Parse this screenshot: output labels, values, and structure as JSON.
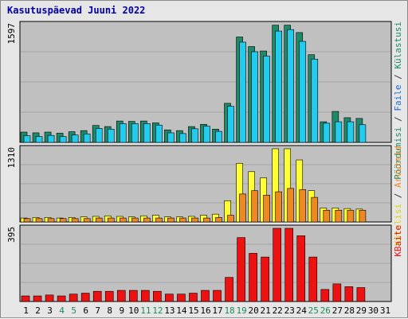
{
  "title": "Kasutuspäevad Juuni 2022",
  "colors": {
    "panel_bg": "#c0c0c0",
    "gridline": "#a6a6a6",
    "weekday_label": "#000000",
    "weekend_label": "#1f8a5a",
    "visits": "#1f8a6a",
    "pages_hits": "#ffff33",
    "files": "#22ccee",
    "bytes": "#ee1111",
    "requests": "#ee8822"
  },
  "legend": {
    "top": [
      {
        "text": "Pöördumisi",
        "color": "#1f8a6a"
      },
      {
        "text": " / ",
        "color": "#333333"
      },
      {
        "text": "Faile",
        "color": "#1a6bd8"
      },
      {
        "text": " / ",
        "color": "#333333"
      },
      {
        "text": "Külastusi",
        "color": "#1f8a6a"
      }
    ],
    "middle": [
      {
        "text": "Külalisi",
        "color": "#e0d000"
      },
      {
        "text": " / ",
        "color": "#333333"
      },
      {
        "text": "Arvuteid",
        "color": "#ee8822"
      }
    ],
    "bottom": [
      {
        "text": "KBaite",
        "color": "#ee1111"
      }
    ]
  },
  "chart_data": [
    {
      "type": "bar",
      "panel": "top",
      "max_label": "1597",
      "ylim": [
        0,
        1597
      ],
      "categories": [
        "1",
        "2",
        "3",
        "4",
        "5",
        "6",
        "7",
        "8",
        "9",
        "10",
        "11",
        "12",
        "13",
        "14",
        "15",
        "16",
        "17",
        "18",
        "19",
        "20",
        "21",
        "22",
        "23",
        "24",
        "25",
        "26",
        "27",
        "28",
        "29",
        "30",
        "31"
      ],
      "weekend_days": [
        "4",
        "5",
        "11",
        "12",
        "18",
        "19",
        "25",
        "26"
      ],
      "series": [
        {
          "name": "Pöördumisi",
          "color": "#1f8a6a",
          "values": [
            140,
            130,
            140,
            125,
            145,
            160,
            230,
            215,
            290,
            285,
            290,
            265,
            170,
            160,
            215,
            245,
            180,
            530,
            1430,
            1300,
            1240,
            1590,
            1590,
            1490,
            1190,
            280,
            420,
            335,
            325,
            0,
            0
          ]
        },
        {
          "name": "Faile",
          "color": "#22ccee",
          "values": [
            90,
            80,
            95,
            80,
            100,
            115,
            190,
            180,
            255,
            255,
            255,
            235,
            130,
            120,
            185,
            220,
            150,
            490,
            1360,
            1230,
            1170,
            1510,
            1530,
            1370,
            1130,
            260,
            280,
            280,
            240,
            0,
            0
          ]
        }
      ]
    },
    {
      "type": "bar",
      "panel": "middle",
      "max_label": "1310",
      "ylim": [
        0,
        1310
      ],
      "categories": [
        "1",
        "2",
        "3",
        "4",
        "5",
        "6",
        "7",
        "8",
        "9",
        "10",
        "11",
        "12",
        "13",
        "14",
        "15",
        "16",
        "17",
        "18",
        "19",
        "20",
        "21",
        "22",
        "23",
        "24",
        "25",
        "26",
        "27",
        "28",
        "29",
        "30",
        "31"
      ],
      "series": [
        {
          "name": "Külalisi",
          "color": "#ffff33",
          "values": [
            70,
            80,
            80,
            70,
            80,
            90,
            100,
            110,
            100,
            90,
            110,
            120,
            90,
            90,
            100,
            120,
            140,
            380,
            1050,
            900,
            790,
            1310,
            1310,
            1110,
            560,
            250,
            250,
            240,
            230,
            0,
            0
          ]
        },
        {
          "name": "Arvuteid",
          "color": "#ee8822",
          "values": [
            60,
            60,
            60,
            60,
            60,
            60,
            70,
            70,
            70,
            70,
            70,
            70,
            70,
            70,
            70,
            70,
            80,
            120,
            500,
            560,
            480,
            540,
            600,
            580,
            440,
            210,
            210,
            210,
            210,
            0,
            0
          ]
        }
      ]
    },
    {
      "type": "bar",
      "panel": "bottom",
      "max_label": "395",
      "ylim": [
        0,
        395
      ],
      "categories": [
        "1",
        "2",
        "3",
        "4",
        "5",
        "6",
        "7",
        "8",
        "9",
        "10",
        "11",
        "12",
        "13",
        "14",
        "15",
        "16",
        "17",
        "18",
        "19",
        "20",
        "21",
        "22",
        "23",
        "24",
        "25",
        "26",
        "27",
        "28",
        "29",
        "30",
        "31"
      ],
      "series": [
        {
          "name": "KBaite",
          "color": "#ee1111",
          "values": [
            30,
            30,
            35,
            30,
            40,
            45,
            55,
            55,
            60,
            60,
            60,
            55,
            40,
            40,
            45,
            60,
            60,
            130,
            345,
            260,
            240,
            395,
            395,
            355,
            240,
            65,
            95,
            80,
            75,
            0,
            0
          ]
        }
      ]
    }
  ]
}
